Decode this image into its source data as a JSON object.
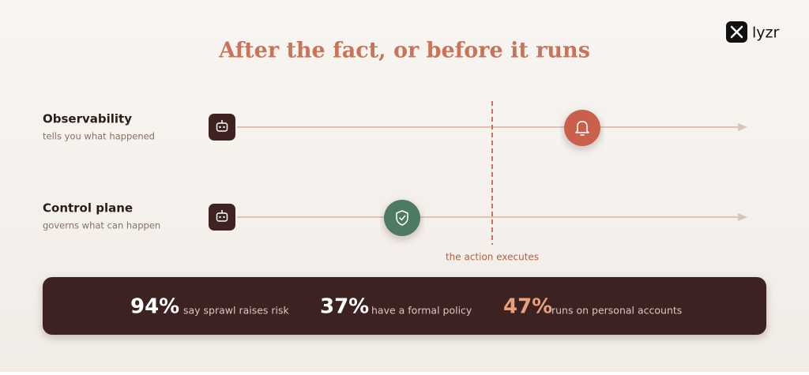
{
  "brand": "lyzr",
  "title": "After the fact, or before it runs",
  "rows": [
    {
      "label": "Observability",
      "caption": "tells you what happened"
    },
    {
      "label": "Control plane",
      "caption": "governs what can happen"
    }
  ],
  "divider_label": "the action executes",
  "stats": [
    {
      "value": "94%",
      "text": "say sprawl raises risk"
    },
    {
      "value": "37%",
      "text": "have a formal policy"
    },
    {
      "value": "47%",
      "text": "runs on personal accounts"
    }
  ]
}
